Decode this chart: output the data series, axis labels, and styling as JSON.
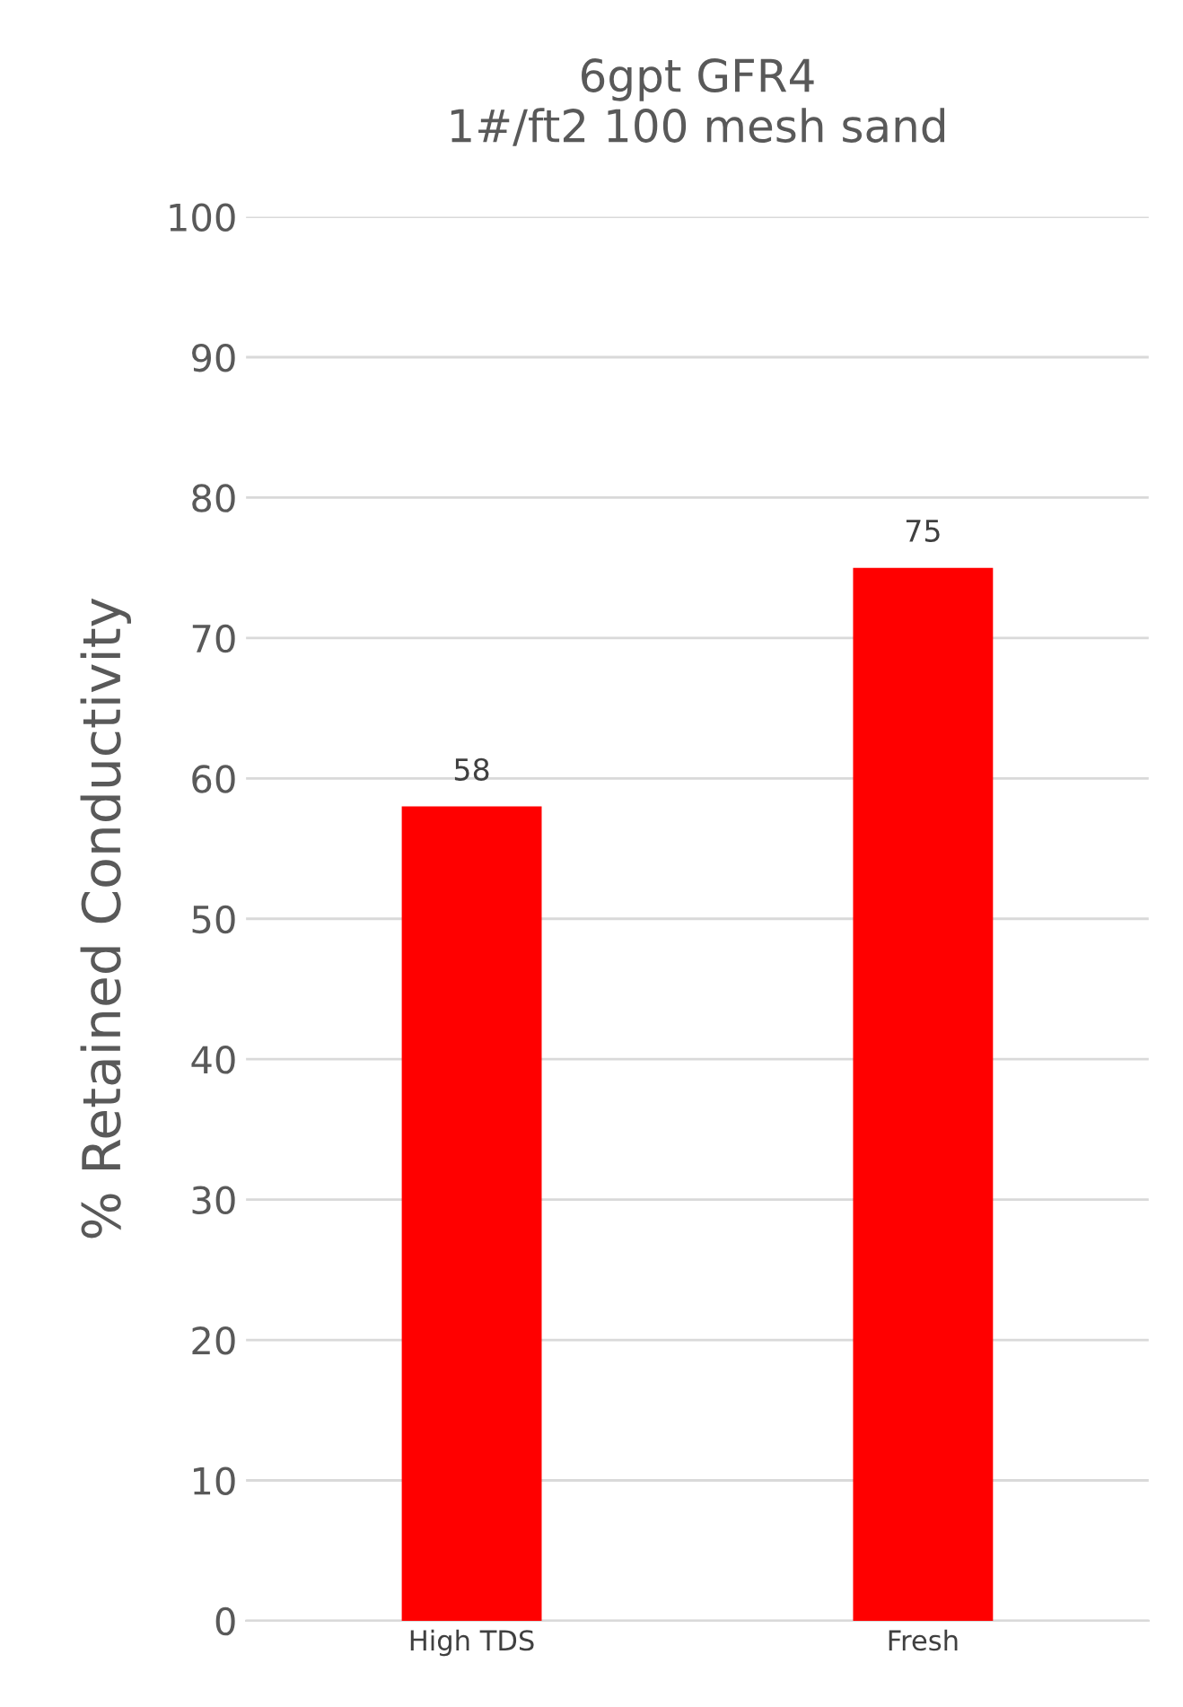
{
  "chart_data": {
    "type": "bar",
    "title": "6gpt GFR4\n1#/ft2 100 mesh sand",
    "ylabel": "% Retained Conductivity",
    "categories": [
      "High TDS",
      "Fresh"
    ],
    "values": [
      58,
      75
    ],
    "color": "#ff0000",
    "ylim": [
      0,
      100
    ],
    "yticks": [
      0,
      10,
      20,
      30,
      40,
      50,
      60,
      70,
      80,
      90,
      100
    ],
    "grid": "y",
    "data_labels": true,
    "legend": false
  }
}
